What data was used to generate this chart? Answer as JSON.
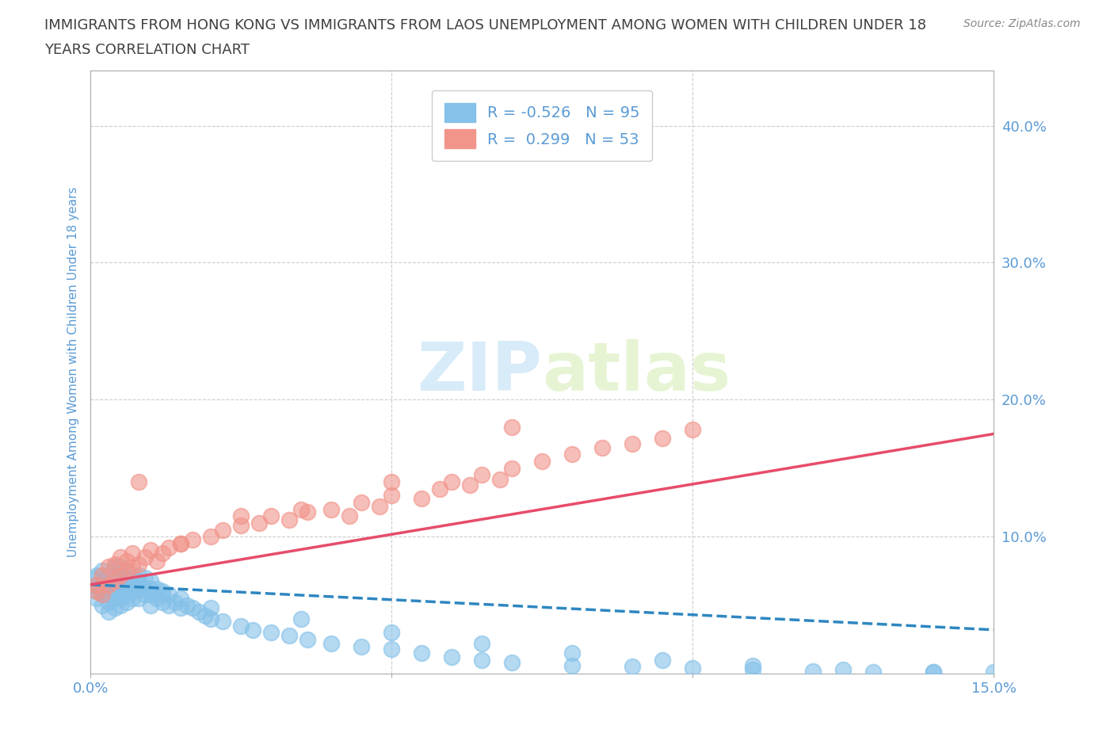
{
  "title_line1": "IMMIGRANTS FROM HONG KONG VS IMMIGRANTS FROM LAOS UNEMPLOYMENT AMONG WOMEN WITH CHILDREN UNDER 18",
  "title_line2": "YEARS CORRELATION CHART",
  "source_text": "Source: ZipAtlas.com",
  "ylabel": "Unemployment Among Women with Children Under 18 years",
  "xlim": [
    0.0,
    0.15
  ],
  "ylim": [
    0.0,
    0.44
  ],
  "y_ticks_right": [
    0.1,
    0.2,
    0.3,
    0.4
  ],
  "y_tick_labels_right": [
    "10.0%",
    "20.0%",
    "30.0%",
    "40.0%"
  ],
  "hk_R": -0.526,
  "hk_N": 95,
  "laos_R": 0.299,
  "laos_N": 53,
  "hk_color": "#85C1E9",
  "laos_color": "#F1948A",
  "hk_line_color": "#2E86C1",
  "laos_line_color": "#E74C6A",
  "background_color": "#FFFFFF",
  "grid_color": "#CCCCCC",
  "axis_label_color": "#5B9BD5",
  "title_color": "#404040",
  "hk_x": [
    0.001,
    0.001,
    0.001,
    0.001,
    0.001,
    0.002,
    0.002,
    0.002,
    0.002,
    0.002,
    0.003,
    0.003,
    0.003,
    0.003,
    0.003,
    0.003,
    0.004,
    0.004,
    0.004,
    0.004,
    0.004,
    0.004,
    0.004,
    0.005,
    0.005,
    0.005,
    0.005,
    0.005,
    0.005,
    0.005,
    0.006,
    0.006,
    0.006,
    0.006,
    0.006,
    0.007,
    0.007,
    0.007,
    0.007,
    0.008,
    0.008,
    0.008,
    0.008,
    0.009,
    0.009,
    0.009,
    0.01,
    0.01,
    0.01,
    0.01,
    0.011,
    0.011,
    0.012,
    0.012,
    0.013,
    0.013,
    0.014,
    0.015,
    0.015,
    0.016,
    0.017,
    0.018,
    0.019,
    0.02,
    0.022,
    0.025,
    0.027,
    0.03,
    0.033,
    0.036,
    0.04,
    0.045,
    0.05,
    0.055,
    0.06,
    0.065,
    0.07,
    0.08,
    0.09,
    0.1,
    0.11,
    0.12,
    0.13,
    0.14,
    0.15,
    0.012,
    0.02,
    0.035,
    0.05,
    0.065,
    0.08,
    0.095,
    0.11,
    0.125,
    0.14
  ],
  "hk_y": [
    0.055,
    0.06,
    0.065,
    0.07,
    0.072,
    0.05,
    0.058,
    0.062,
    0.068,
    0.075,
    0.045,
    0.052,
    0.058,
    0.062,
    0.068,
    0.072,
    0.048,
    0.055,
    0.06,
    0.065,
    0.07,
    0.075,
    0.078,
    0.05,
    0.055,
    0.06,
    0.065,
    0.068,
    0.072,
    0.078,
    0.052,
    0.058,
    0.062,
    0.068,
    0.075,
    0.055,
    0.06,
    0.065,
    0.07,
    0.055,
    0.062,
    0.068,
    0.072,
    0.058,
    0.062,
    0.07,
    0.05,
    0.058,
    0.062,
    0.068,
    0.055,
    0.062,
    0.052,
    0.06,
    0.05,
    0.058,
    0.052,
    0.048,
    0.055,
    0.05,
    0.048,
    0.045,
    0.042,
    0.04,
    0.038,
    0.035,
    0.032,
    0.03,
    0.028,
    0.025,
    0.022,
    0.02,
    0.018,
    0.015,
    0.012,
    0.01,
    0.008,
    0.006,
    0.005,
    0.004,
    0.003,
    0.002,
    0.001,
    0.001,
    0.001,
    0.058,
    0.048,
    0.04,
    0.03,
    0.022,
    0.015,
    0.01,
    0.006,
    0.003,
    0.001
  ],
  "laos_x": [
    0.001,
    0.001,
    0.002,
    0.002,
    0.003,
    0.003,
    0.004,
    0.004,
    0.005,
    0.005,
    0.006,
    0.006,
    0.007,
    0.007,
    0.008,
    0.009,
    0.01,
    0.011,
    0.012,
    0.013,
    0.015,
    0.017,
    0.02,
    0.022,
    0.025,
    0.028,
    0.03,
    0.033,
    0.036,
    0.04,
    0.043,
    0.045,
    0.048,
    0.05,
    0.055,
    0.058,
    0.06,
    0.063,
    0.065,
    0.068,
    0.07,
    0.075,
    0.08,
    0.085,
    0.09,
    0.095,
    0.1,
    0.008,
    0.015,
    0.025,
    0.035,
    0.05,
    0.07
  ],
  "laos_y": [
    0.06,
    0.065,
    0.058,
    0.072,
    0.065,
    0.078,
    0.068,
    0.08,
    0.072,
    0.085,
    0.075,
    0.082,
    0.078,
    0.088,
    0.08,
    0.085,
    0.09,
    0.082,
    0.088,
    0.092,
    0.095,
    0.098,
    0.1,
    0.105,
    0.108,
    0.11,
    0.115,
    0.112,
    0.118,
    0.12,
    0.115,
    0.125,
    0.122,
    0.13,
    0.128,
    0.135,
    0.14,
    0.138,
    0.145,
    0.142,
    0.15,
    0.155,
    0.16,
    0.165,
    0.168,
    0.172,
    0.178,
    0.14,
    0.095,
    0.115,
    0.12,
    0.14,
    0.18
  ]
}
